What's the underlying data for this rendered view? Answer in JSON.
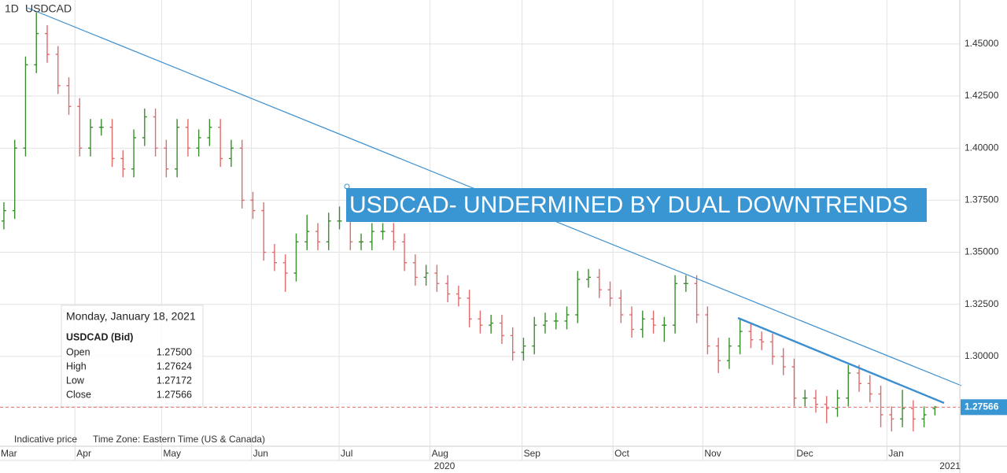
{
  "chart_data": {
    "type": "ohlc",
    "timeframe": "1D",
    "title": "USDCAD",
    "annotation": "USDCAD- UNDERMINED BY DUAL DOWNTRENDS",
    "up_color": "#3a8c2e",
    "down_color": "#e06b6b",
    "grid": true,
    "xlim": [
      -0.36,
      88.3
    ],
    "ylim": [
      1.2569,
      1.4711
    ],
    "yticks": [
      {
        "value": 1.3,
        "label": "1.30000"
      },
      {
        "value": 1.325,
        "label": "1.32500"
      },
      {
        "value": 1.35,
        "label": "1.35000"
      },
      {
        "value": 1.375,
        "label": "1.37500"
      },
      {
        "value": 1.4,
        "label": "1.40000"
      },
      {
        "value": 1.425,
        "label": "1.42500"
      },
      {
        "value": 1.45,
        "label": "1.45000"
      }
    ],
    "xticks": [
      {
        "value": 0,
        "label": "Mar"
      },
      {
        "value": 7,
        "label": "Apr"
      },
      {
        "value": 15,
        "label": "May"
      },
      {
        "value": 23.3,
        "label": "Jun"
      },
      {
        "value": 31.4,
        "label": "Jul"
      },
      {
        "value": 39.8,
        "label": "Aug"
      },
      {
        "value": 48.3,
        "label": "Sep"
      },
      {
        "value": 56.7,
        "label": "Oct"
      },
      {
        "value": 65,
        "label": "Nov"
      },
      {
        "value": 73.5,
        "label": "Dec"
      },
      {
        "value": 82,
        "label": "Jan"
      }
    ],
    "year_ticks": [
      {
        "value": 40.7,
        "label": "2020"
      },
      {
        "value": 87.4,
        "label": "2021"
      }
    ],
    "open": [
      1.365,
      1.37,
      1.4,
      1.44,
      1.455,
      1.445,
      1.43,
      1.42,
      1.4,
      1.41,
      1.41,
      1.395,
      1.39,
      1.405,
      1.415,
      1.4,
      1.39,
      1.41,
      1.4,
      1.405,
      1.41,
      1.395,
      1.4,
      1.375,
      1.37,
      1.35,
      1.345,
      1.34,
      1.355,
      1.36,
      1.355,
      1.365,
      1.365,
      1.355,
      1.355,
      1.36,
      1.36,
      1.355,
      1.345,
      1.338,
      1.34,
      1.335,
      1.33,
      1.328,
      1.318,
      1.315,
      1.316,
      1.31,
      1.302,
      1.305,
      1.315,
      1.317,
      1.317,
      1.32,
      1.337,
      1.338,
      1.332,
      1.328,
      1.32,
      1.313,
      1.318,
      1.315,
      1.315,
      1.335,
      1.335,
      1.32,
      1.305,
      1.298,
      1.305,
      1.312,
      1.308,
      1.307,
      1.3,
      1.295,
      1.28,
      1.28,
      1.277,
      1.275,
      1.28,
      1.292,
      1.287,
      1.282,
      1.272,
      1.27,
      1.275,
      1.27,
      1.275
    ],
    "high": [
      1.374,
      1.404,
      1.444,
      1.465,
      1.459,
      1.449,
      1.434,
      1.424,
      1.414,
      1.414,
      1.414,
      1.399,
      1.409,
      1.419,
      1.419,
      1.404,
      1.414,
      1.414,
      1.409,
      1.414,
      1.414,
      1.404,
      1.404,
      1.379,
      1.374,
      1.354,
      1.349,
      1.359,
      1.368,
      1.364,
      1.369,
      1.372,
      1.369,
      1.359,
      1.364,
      1.364,
      1.364,
      1.359,
      1.349,
      1.344,
      1.344,
      1.339,
      1.334,
      1.332,
      1.322,
      1.32,
      1.32,
      1.314,
      1.309,
      1.319,
      1.321,
      1.321,
      1.324,
      1.341,
      1.342,
      1.342,
      1.336,
      1.332,
      1.324,
      1.322,
      1.322,
      1.319,
      1.339,
      1.339,
      1.339,
      1.324,
      1.309,
      1.309,
      1.318,
      1.316,
      1.312,
      1.311,
      1.304,
      1.299,
      1.284,
      1.284,
      1.281,
      1.284,
      1.296,
      1.296,
      1.291,
      1.286,
      1.276,
      1.284,
      1.279,
      1.276,
      1.27624
    ],
    "low": [
      1.361,
      1.366,
      1.396,
      1.436,
      1.441,
      1.426,
      1.416,
      1.396,
      1.396,
      1.406,
      1.391,
      1.386,
      1.386,
      1.401,
      1.396,
      1.386,
      1.386,
      1.396,
      1.396,
      1.401,
      1.391,
      1.391,
      1.371,
      1.366,
      1.346,
      1.341,
      1.331,
      1.336,
      1.351,
      1.351,
      1.351,
      1.361,
      1.351,
      1.351,
      1.351,
      1.356,
      1.351,
      1.341,
      1.334,
      1.334,
      1.331,
      1.326,
      1.324,
      1.314,
      1.311,
      1.311,
      1.306,
      1.298,
      1.298,
      1.301,
      1.311,
      1.313,
      1.313,
      1.316,
      1.333,
      1.328,
      1.324,
      1.316,
      1.309,
      1.309,
      1.311,
      1.307,
      1.311,
      1.331,
      1.316,
      1.301,
      1.292,
      1.294,
      1.301,
      1.304,
      1.303,
      1.296,
      1.291,
      1.276,
      1.276,
      1.273,
      1.268,
      1.271,
      1.276,
      1.283,
      1.278,
      1.266,
      1.264,
      1.266,
      1.264,
      1.266,
      1.27172
    ],
    "close": [
      1.37,
      1.4,
      1.44,
      1.455,
      1.445,
      1.43,
      1.42,
      1.4,
      1.41,
      1.41,
      1.395,
      1.39,
      1.405,
      1.415,
      1.4,
      1.39,
      1.41,
      1.4,
      1.405,
      1.41,
      1.395,
      1.4,
      1.375,
      1.37,
      1.35,
      1.345,
      1.34,
      1.355,
      1.36,
      1.355,
      1.365,
      1.365,
      1.355,
      1.355,
      1.36,
      1.36,
      1.355,
      1.345,
      1.338,
      1.34,
      1.335,
      1.33,
      1.328,
      1.318,
      1.315,
      1.316,
      1.31,
      1.302,
      1.305,
      1.315,
      1.317,
      1.317,
      1.32,
      1.337,
      1.338,
      1.332,
      1.328,
      1.32,
      1.313,
      1.318,
      1.315,
      1.315,
      1.335,
      1.335,
      1.32,
      1.305,
      1.298,
      1.305,
      1.312,
      1.308,
      1.307,
      1.3,
      1.295,
      1.28,
      1.28,
      1.277,
      1.275,
      1.28,
      1.292,
      1.287,
      1.282,
      1.272,
      1.27,
      1.275,
      1.27,
      1.272,
      1.27566
    ],
    "info_box": {
      "date": "Monday, January 18, 2021",
      "symbol": "USDCAD (Bid)",
      "rows": [
        {
          "label": "Open",
          "value": "1.27500"
        },
        {
          "label": "High",
          "value": "1.27624"
        },
        {
          "label": "Low",
          "value": "1.27172"
        },
        {
          "label": "Close",
          "value": "1.27566"
        }
      ]
    },
    "footer": [
      "Indicative price",
      "Time Zone: Eastern Time (US & Canada)"
    ]
  }
}
